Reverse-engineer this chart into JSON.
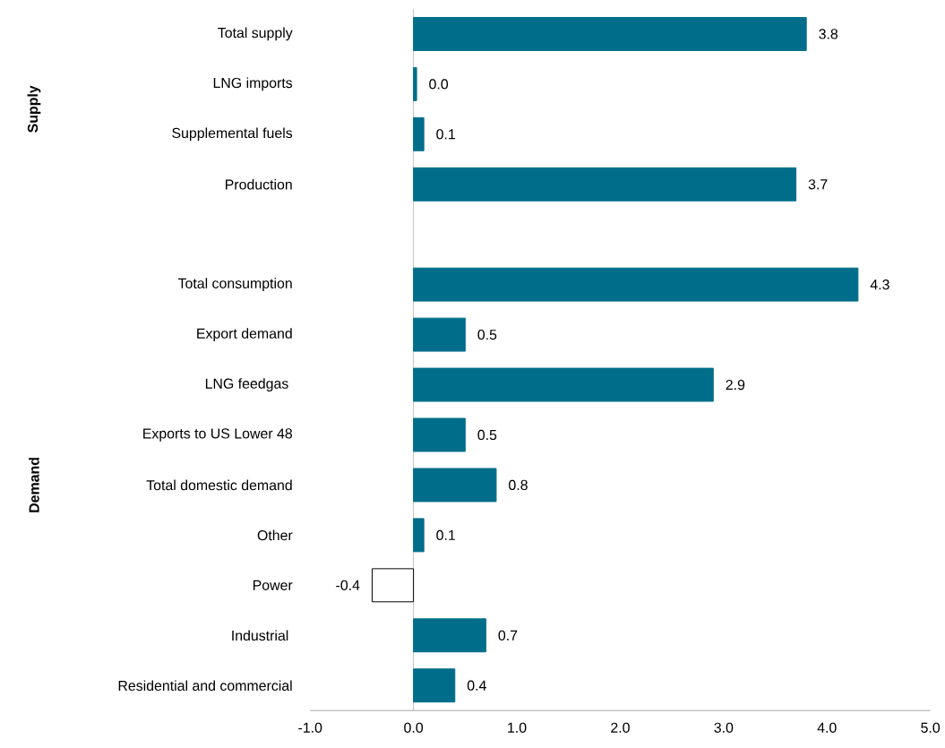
{
  "chart_data": {
    "type": "bar",
    "orientation": "horizontal",
    "categories": [
      "Total supply",
      "LNG imports",
      "Supplemental fuels",
      "Production",
      null,
      "Total consumption",
      "Export demand",
      "LNG feedgas ",
      "Exports to US Lower 48",
      "Total domestic demand",
      "Other",
      "Power",
      "Industrial ",
      "Residential and commercial"
    ],
    "values": [
      3.8,
      0.03,
      0.1,
      3.7,
      null,
      4.3,
      0.5,
      2.9,
      0.5,
      0.8,
      0.1,
      -0.4,
      0.7,
      0.4
    ],
    "value_labels": [
      "3.8",
      "0.0",
      "0.1",
      "3.7",
      null,
      "4.3",
      "0.5",
      "2.9",
      "0.5",
      "0.8",
      "0.1",
      "-0.4",
      "0.7",
      "0.4"
    ],
    "colors": [
      "#006e8a",
      "#006e8a",
      "#006e8a",
      "#006e8a",
      null,
      "#006e8a",
      "#006e8a",
      "#006e8a",
      "#006e8a",
      "#006e8a",
      "#006e8a",
      "#ffffff",
      "#006e8a",
      "#006e8a"
    ],
    "xlim": [
      -1,
      5
    ],
    "xticks": [
      {
        "value": -1,
        "label": "-1.0"
      },
      {
        "value": 0,
        "label": "0.0"
      },
      {
        "value": 1,
        "label": "1.0"
      },
      {
        "value": 2,
        "label": "2.0"
      },
      {
        "value": 3,
        "label": "3.0"
      },
      {
        "value": 4,
        "label": "4.0"
      },
      {
        "value": 5,
        "label": "5.0"
      }
    ],
    "ref_lines": [
      {
        "axis": "x",
        "value": 0,
        "color": "#bfbfbf"
      }
    ],
    "annotations": [
      "Supply",
      "Demand"
    ]
  }
}
